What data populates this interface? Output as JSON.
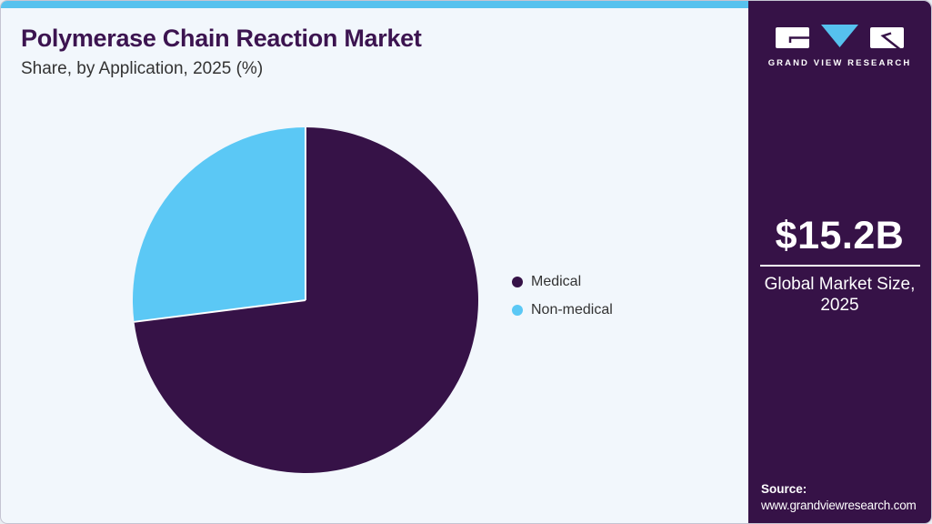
{
  "header": {
    "title": "Polymerase Chain Reaction Market",
    "subtitle": "Share, by Application, 2025 (%)"
  },
  "chart_data": {
    "type": "pie",
    "title": "Polymerase Chain Reaction Market Share, by Application, 2025 (%)",
    "categories": [
      "Medical",
      "Non-medical"
    ],
    "values": [
      73,
      27
    ],
    "unit": "%",
    "colors": [
      "#361247",
      "#5bc8f5"
    ],
    "start_angle_deg": 0,
    "direction": "clockwise",
    "legend_position": "right",
    "slice_separator_color": "#ffffff"
  },
  "sidebar": {
    "logo": {
      "brand": "GRAND VIEW RESEARCH"
    },
    "market_size": {
      "value": "$15.2B",
      "label_line1": "Global Market Size,",
      "label_line2": "2025"
    },
    "source": {
      "label": "Source:",
      "url": "www.grandviewresearch.com"
    }
  },
  "colors": {
    "background": "#f2f7fc",
    "accent_cyan": "#57c2ee",
    "brand_purple": "#361247",
    "title_purple": "#3c1450",
    "text_dark": "#333333",
    "white": "#ffffff"
  }
}
